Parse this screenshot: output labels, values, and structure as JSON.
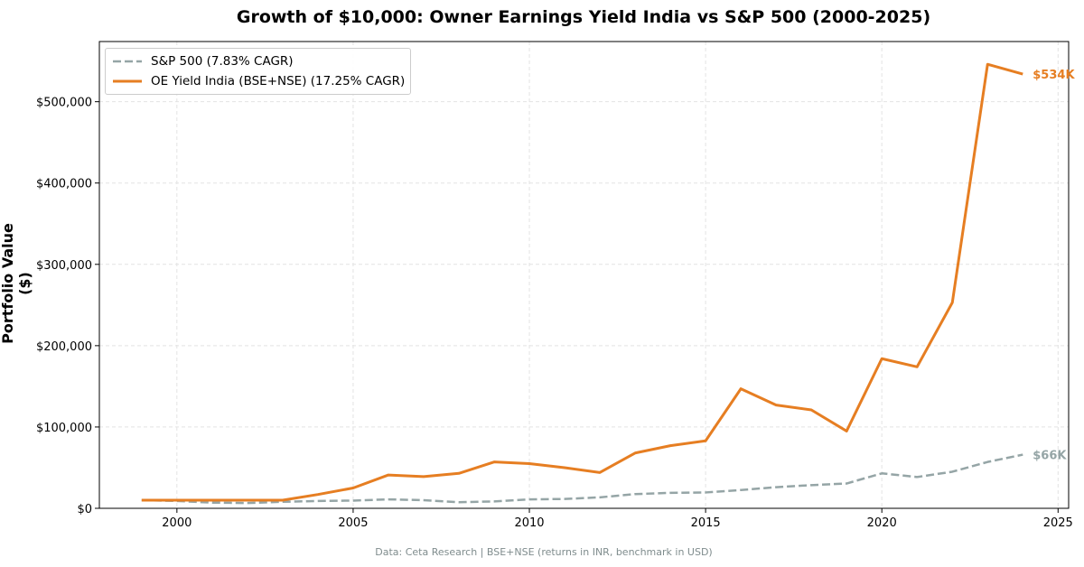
{
  "chart_data": {
    "type": "line",
    "title": "Growth of $10,000: Owner Earnings Yield India vs S&P 500 (2000-2025)",
    "xlabel": "",
    "ylabel": "Portfolio Value ($)",
    "footer": "Data: Ceta Research | BSE+NSE (returns in INR, benchmark in USD)",
    "xlim": [
      1997.8,
      2025.3
    ],
    "ylim": [
      0,
      574000
    ],
    "grid": true,
    "legend_position": "top-left",
    "x_ticks": [
      2000,
      2005,
      2010,
      2015,
      2020,
      2025
    ],
    "y_ticks": [
      0,
      100000,
      200000,
      300000,
      400000,
      500000
    ],
    "y_tick_labels": [
      "$0",
      "$100,000",
      "$200,000",
      "$300,000",
      "$400,000",
      "$500,000"
    ],
    "x": [
      1999,
      2000,
      2001,
      2002,
      2003,
      2004,
      2005,
      2006,
      2007,
      2008,
      2009,
      2010,
      2011,
      2012,
      2013,
      2014,
      2015,
      2016,
      2017,
      2018,
      2019,
      2020,
      2021,
      2022,
      2023,
      2024
    ],
    "series": [
      {
        "name": "S&P 500 (7.83% CAGR)",
        "color": "#95a5a6",
        "style": "dashed",
        "end_label": "$66K",
        "values": [
          10000,
          9000,
          7000,
          6500,
          8000,
          9000,
          9500,
          11000,
          10000,
          7500,
          8500,
          11000,
          11500,
          13500,
          17500,
          19000,
          19500,
          22500,
          26000,
          28500,
          30500,
          43000,
          38500,
          45000,
          57000,
          66000
        ]
      },
      {
        "name": "OE Yield India (BSE+NSE) (17.25% CAGR)",
        "color": "#e67e22",
        "style": "solid",
        "end_label": "$534K",
        "values": [
          10000,
          10000,
          10000,
          10000,
          10000,
          17000,
          25000,
          41000,
          39000,
          43000,
          57000,
          55000,
          50000,
          44000,
          68000,
          77000,
          83000,
          147000,
          127000,
          121000,
          95000,
          184000,
          174000,
          253000,
          546000,
          534000
        ]
      }
    ]
  }
}
